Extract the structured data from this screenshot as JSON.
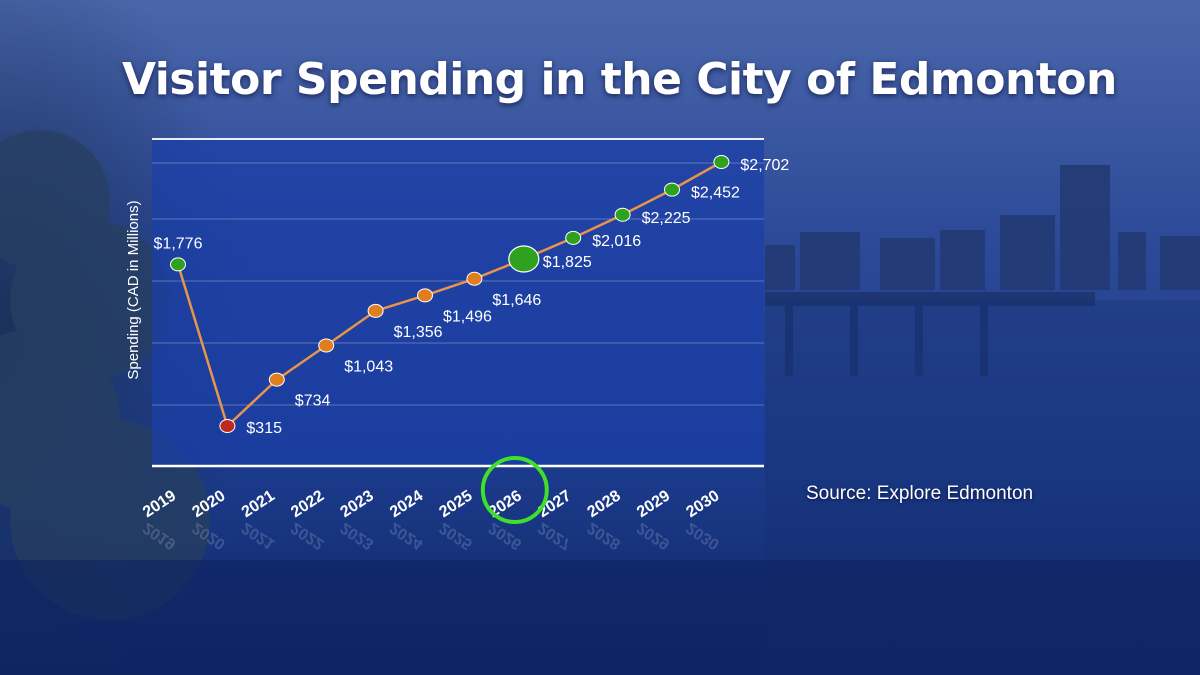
{
  "title": "Visitor Spending in the City of Edmonton",
  "source": "Source: Explore Edmonton",
  "colors": {
    "line": "#e8944a",
    "actual_point": "#e07d1e",
    "low_point": "#c0281e",
    "forecast_point": "#2ea11e",
    "highlight_ring": "#3ee02a",
    "panel": "#1a3ea8"
  },
  "chart_data": {
    "type": "line",
    "title": "Visitor Spending in the City of Edmonton",
    "xlabel": "",
    "ylabel": "Spending (CAD in Millions)",
    "categories": [
      "2019",
      "2020",
      "2021",
      "2022",
      "2023",
      "2024",
      "2025",
      "2026",
      "2027",
      "2028",
      "2029",
      "2030"
    ],
    "series": [
      {
        "values": [
          1776,
          315,
          734,
          1043,
          1356,
          1496,
          1646,
          1825,
          2016,
          2225,
          2452,
          2702
        ]
      }
    ],
    "data_labels": [
      "$1,776",
      "$315",
      "$734",
      "$1,043",
      "$1,356",
      "$1,496",
      "$1,646",
      "$1,825",
      "$2,016",
      "$2,225",
      "$2,452",
      "$2,702"
    ],
    "point_status": [
      "forecast",
      "low",
      "actual",
      "actual",
      "actual",
      "actual",
      "actual",
      "forecast",
      "forecast",
      "forecast",
      "forecast",
      "forecast"
    ],
    "highlighted_point": "2026",
    "highlighted_category": "2026",
    "ylim": [
      0,
      2800
    ],
    "grid": true,
    "legend": "none"
  }
}
